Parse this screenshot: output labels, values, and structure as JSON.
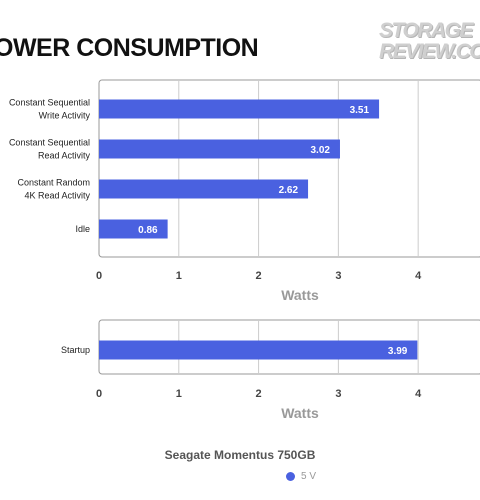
{
  "title": "OWER CONSUMPTION",
  "watermark": {
    "line1": "STORAGE",
    "line2": "REVIEW.CO"
  },
  "colors": {
    "bar": "#4a61e0",
    "grid": "#cccccc",
    "frame": "#999999"
  },
  "chart_data": [
    {
      "type": "bar",
      "orientation": "horizontal",
      "categories": [
        [
          "Constant Sequential",
          "Write Activity"
        ],
        [
          "Constant Sequential",
          "Read Activity"
        ],
        [
          "Constant Random",
          "4K Read Activity"
        ],
        [
          "Idle"
        ]
      ],
      "series": [
        {
          "name": "5 V",
          "values": [
            3.51,
            3.02,
            2.62,
            0.86
          ]
        }
      ],
      "xlabel": "Watts",
      "xticks": [
        0,
        1,
        2,
        3,
        4
      ],
      "xlim": [
        0,
        4.8
      ],
      "grid": true
    },
    {
      "type": "bar",
      "orientation": "horizontal",
      "categories": [
        [
          "Startup"
        ]
      ],
      "series": [
        {
          "name": "5 V",
          "values": [
            3.99
          ]
        }
      ],
      "xlabel": "Watts",
      "xticks": [
        0,
        1,
        2,
        3,
        4
      ],
      "xlim": [
        0,
        4.8
      ],
      "grid": true
    }
  ],
  "legend": {
    "title": "Seagate Momentus 750GB",
    "label": "5 V",
    "color": "#4a61e0"
  }
}
